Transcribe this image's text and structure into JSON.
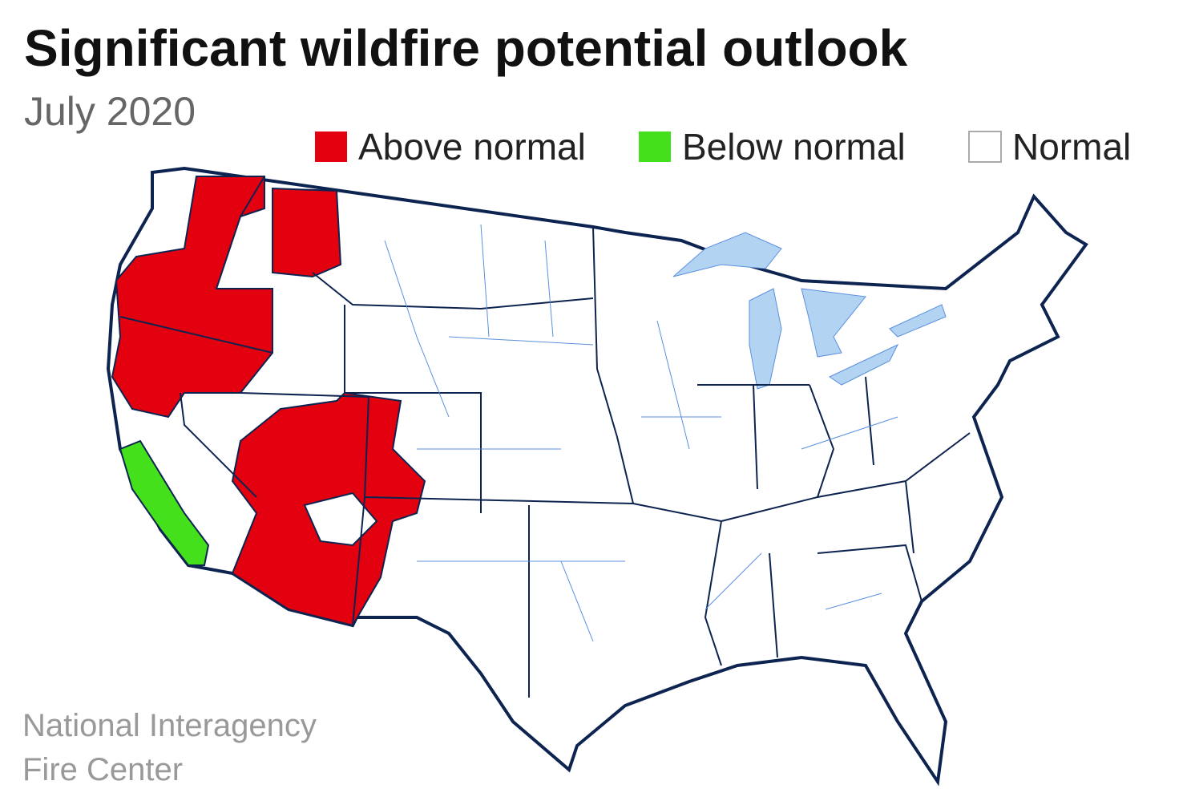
{
  "header": {
    "title": "Significant wildfire potential outlook",
    "subtitle": "July 2020"
  },
  "legend": [
    {
      "label": "Above normal",
      "color": "#e3000f"
    },
    {
      "label": "Below normal",
      "color": "#44e01c"
    },
    {
      "label": "Normal",
      "color": "#ffffff"
    }
  ],
  "source": [
    "National Interagency",
    "Fire Center"
  ]
}
